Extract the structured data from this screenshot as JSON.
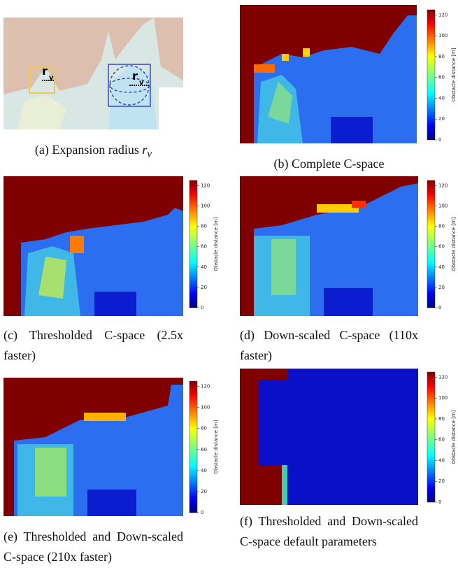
{
  "figure": {
    "colorbar": {
      "label": "Obstacle distance [m]",
      "range": [
        0,
        125
      ],
      "ticks": [
        0,
        20,
        40,
        60,
        80,
        100,
        120
      ]
    },
    "annotations": [
      {
        "main": "r",
        "sub": "v"
      },
      {
        "main": "r",
        "sub": "v"
      }
    ],
    "captions": [
      {
        "text": "(a) Expansion radius",
        "math": "r",
        "sub": "v"
      },
      {
        "text": "(b) Complete C-space"
      },
      {
        "text": "(c) Thresholded C-space (2.5x faster)"
      },
      {
        "text": "(d) Down-scaled C-space (110x faster)"
      },
      {
        "text": "(e) Thresholded and Down-scaled C-space (210x faster)"
      },
      {
        "text": "(f) Thresholded and Down-scaled C-space default parameters"
      }
    ]
  }
}
